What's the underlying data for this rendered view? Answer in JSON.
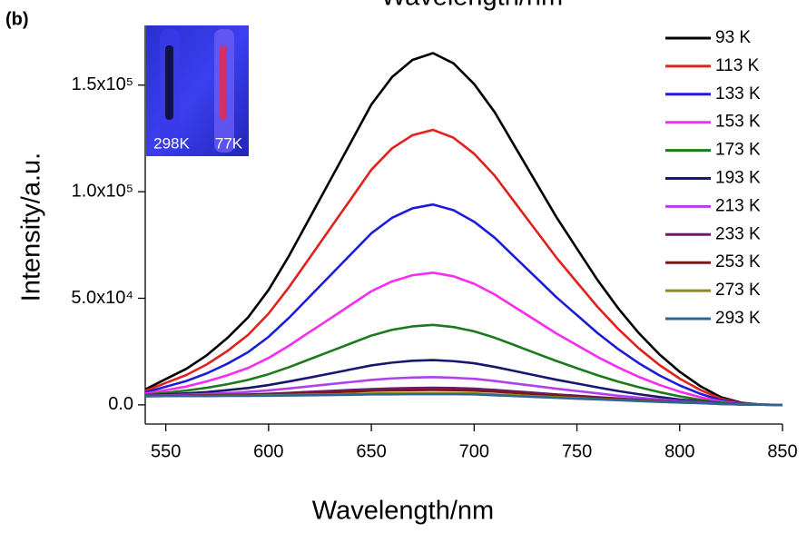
{
  "chart_data": {
    "type": "line",
    "header_text": "Wavelength/nm",
    "panel_label": "(b)",
    "inset_labels": [
      "298K",
      "77K"
    ],
    "x_label": "Wavelength/nm",
    "y_label": "Intensity/a.u.",
    "x": [
      540,
      550,
      560,
      570,
      580,
      590,
      600,
      610,
      620,
      630,
      640,
      650,
      660,
      670,
      680,
      690,
      700,
      710,
      720,
      730,
      740,
      750,
      760,
      770,
      780,
      790,
      800,
      810,
      820,
      830,
      840,
      850
    ],
    "xlim": [
      540,
      850
    ],
    "xticks": [
      550,
      600,
      650,
      700,
      750,
      800,
      850
    ],
    "ylim": [
      -9000,
      178000
    ],
    "yticks": [
      {
        "value": 0,
        "label": "0.0"
      },
      {
        "value": 50000,
        "label": "5.0x10⁴"
      },
      {
        "value": 100000,
        "label": "1.0x10⁵"
      },
      {
        "value": 150000,
        "label": "1.5x10⁵"
      }
    ],
    "legend": "upper right",
    "series": [
      {
        "name": "93 K",
        "color": "#000000",
        "values": [
          7200,
          12100,
          16900,
          23300,
          31400,
          41000,
          53900,
          70000,
          87700,
          105400,
          123100,
          140900,
          153700,
          161800,
          165000,
          160200,
          150500,
          137300,
          120900,
          104500,
          88100,
          73300,
          58600,
          45400,
          33800,
          23800,
          15500,
          8800,
          3600,
          1000,
          100,
          0
        ]
      },
      {
        "name": "113 K",
        "color": "#e3201b",
        "values": [
          6500,
          10300,
          14000,
          19000,
          25300,
          32800,
          42800,
          55300,
          69000,
          82800,
          96500,
          110300,
          120300,
          126500,
          129000,
          125300,
          117800,
          107500,
          94700,
          81900,
          69100,
          57500,
          46000,
          35700,
          26600,
          18800,
          12300,
          7000,
          2900,
          800,
          100,
          0
        ]
      },
      {
        "name": "133 K",
        "color": "#1c1cd8",
        "values": [
          5800,
          8500,
          11200,
          14800,
          19300,
          24700,
          31900,
          40900,
          50800,
          60700,
          70600,
          80500,
          87700,
          92200,
          94000,
          91300,
          85900,
          78400,
          69100,
          59800,
          50500,
          42100,
          33700,
          26200,
          19600,
          13900,
          9100,
          5200,
          2200,
          700,
          100,
          0
        ]
      },
      {
        "name": "153 K",
        "color": "#f72cf0",
        "values": [
          5200,
          6900,
          8600,
          11000,
          13900,
          17300,
          22000,
          27800,
          34200,
          40500,
          46900,
          53300,
          57900,
          60800,
          62000,
          60300,
          56800,
          51800,
          45700,
          39600,
          33500,
          28000,
          22500,
          17600,
          13200,
          9400,
          6200,
          3600,
          1600,
          500,
          100,
          0
        ]
      },
      {
        "name": "173 K",
        "color": "#1b7a1b",
        "values": [
          4700,
          5700,
          6700,
          8000,
          9700,
          11700,
          14400,
          17700,
          21400,
          25100,
          28800,
          32500,
          35200,
          36800,
          37500,
          36500,
          34500,
          31500,
          27900,
          24200,
          20600,
          17200,
          13900,
          10900,
          8300,
          6000,
          4000,
          2400,
          1100,
          400,
          100,
          0
        ]
      },
      {
        "name": "193 K",
        "color": "#17176f",
        "values": [
          4300,
          4900,
          5400,
          6000,
          6900,
          7900,
          9300,
          11000,
          12800,
          14700,
          16600,
          18500,
          19800,
          20700,
          21000,
          20500,
          19500,
          17800,
          15800,
          13800,
          11800,
          10000,
          8200,
          6500,
          5000,
          3700,
          2500,
          1600,
          700,
          300,
          100,
          0
        ]
      },
      {
        "name": "213 K",
        "color": "#b040ee",
        "values": [
          4200,
          4500,
          4700,
          5100,
          5500,
          6100,
          6800,
          7700,
          8700,
          9700,
          10700,
          11700,
          12400,
          12800,
          13000,
          12700,
          12200,
          11200,
          10000,
          8800,
          7600,
          6500,
          5400,
          4300,
          3400,
          2600,
          1800,
          1200,
          600,
          200,
          100,
          0
        ]
      },
      {
        "name": "233 K",
        "color": "#6b1a6e",
        "values": [
          4100,
          4200,
          4300,
          4500,
          4700,
          4900,
          5200,
          5600,
          6100,
          6500,
          7000,
          7400,
          7700,
          7900,
          8000,
          7900,
          7600,
          7000,
          6300,
          5600,
          4900,
          4300,
          3600,
          3000,
          2400,
          1900,
          1400,
          900,
          500,
          200,
          100,
          0
        ]
      },
      {
        "name": "253 K",
        "color": "#7b1919",
        "values": [
          4100,
          4200,
          4200,
          4400,
          4500,
          4700,
          4900,
          5200,
          5600,
          5900,
          6200,
          6600,
          6800,
          6900,
          7000,
          6900,
          6700,
          6200,
          5600,
          5000,
          4400,
          3800,
          3300,
          2700,
          2200,
          1700,
          1300,
          900,
          500,
          200,
          100,
          0
        ]
      },
      {
        "name": "273 K",
        "color": "#8c8a1c",
        "values": [
          4000,
          4100,
          4100,
          4200,
          4300,
          4300,
          4500,
          4600,
          4800,
          4900,
          5100,
          5300,
          5400,
          5500,
          5500,
          5500,
          5400,
          4900,
          4500,
          4000,
          3600,
          3200,
          2700,
          2300,
          1900,
          1500,
          1100,
          800,
          400,
          200,
          100,
          0
        ]
      },
      {
        "name": "293 K",
        "color": "#2f6494",
        "values": [
          4000,
          4100,
          4100,
          4100,
          4200,
          4200,
          4300,
          4400,
          4500,
          4600,
          4700,
          4900,
          4900,
          5000,
          5000,
          5000,
          4900,
          4500,
          4100,
          3700,
          3300,
          2900,
          2600,
          2200,
          1800,
          1400,
          1100,
          800,
          400,
          200,
          100,
          0
        ]
      }
    ]
  }
}
